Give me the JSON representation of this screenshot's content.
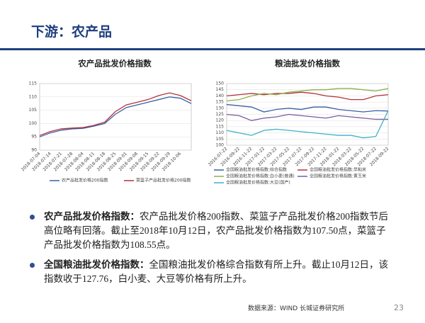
{
  "header": {
    "title": "下游：农产品"
  },
  "chart_data": [
    {
      "type": "line",
      "title": "农产品批发价格指数",
      "categories": [
        "2018-07-04",
        "2018-07-14",
        "2018-07-21",
        "2018-07-28",
        "2018-08-04",
        "2018-08-11",
        "2018-08-18",
        "2018-08-25",
        "2018-09-01",
        "2018-09-08",
        "2018-09-15",
        "2018-09-22",
        "2018-09-29",
        "2018-10-06",
        null
      ],
      "series": [
        {
          "name": "农产品批发价格200指数",
          "color": "#3a5fa8",
          "values": [
            95,
            96.5,
            97.5,
            98,
            98.2,
            99,
            100,
            103.5,
            106,
            107,
            108,
            109,
            110,
            109.5,
            107.5
          ]
        },
        {
          "name": "菜篮子产品批发价格200指数",
          "color": "#b0333a",
          "values": [
            95.5,
            97,
            98,
            98.3,
            98.5,
            99.3,
            100.5,
            104.5,
            107,
            108,
            109,
            110.5,
            111.5,
            110.5,
            108.55
          ]
        }
      ],
      "ylim": [
        90,
        115
      ],
      "yticks": [
        90,
        95,
        100,
        105,
        110,
        115
      ],
      "grid": true
    },
    {
      "type": "line",
      "title": "粮油批发价格指数",
      "categories": [
        "2016-07-22",
        "2016-09-22",
        "2016-11-22",
        "2017-01-22",
        "2017-03-22",
        "2017-05-22",
        "2017-07-22",
        "2017-09-22",
        "2017-11-22",
        "2018-01-22",
        "2018-03-22",
        "2018-05-22",
        "2018-07-22",
        "2018-09-22"
      ],
      "series": [
        {
          "name": "全国粮油批发价格指数:综合指数",
          "color": "#3a5fa8",
          "values": [
            133,
            132,
            131,
            127,
            129,
            130,
            129,
            131,
            131,
            129,
            128,
            127,
            128,
            127.76
          ]
        },
        {
          "name": "全国粮油批发价格指数:早籼米",
          "color": "#b0333a",
          "values": [
            140,
            141,
            142,
            141,
            142,
            142,
            143,
            142,
            140,
            139,
            137,
            137,
            140,
            141
          ]
        },
        {
          "name": "全国粮油批发价格指数:白小麦(普通)",
          "color": "#8db04a",
          "values": [
            136,
            137,
            140,
            142,
            141,
            143,
            144,
            145,
            145,
            146,
            146,
            145,
            144,
            146
          ]
        },
        {
          "name": "全国粮油批发价格指数:黄玉米",
          "color": "#7a5aa0",
          "values": [
            125,
            124,
            120,
            122,
            123,
            125,
            124,
            123,
            122,
            124,
            123,
            122,
            121,
            121
          ]
        },
        {
          "name": "全国粮油批发价格指数:大豆(国产)",
          "color": "#3fb0c8",
          "values": [
            112,
            110,
            108,
            112,
            113,
            112,
            111,
            110,
            109,
            108,
            108,
            106,
            107,
            128
          ]
        }
      ],
      "ylim": [
        100,
        150
      ],
      "yticks": [
        100,
        105,
        110,
        115,
        120,
        125,
        130,
        135,
        140,
        145,
        150
      ],
      "grid": true
    }
  ],
  "bullets": [
    {
      "lead": "农产品批发价格指数：",
      "text": "农产品批发价格200指数、菜篮子产品批发价格200指数节后高位略有回落。截止至2018年10月12日，农产品批发价格指数为107.50点，菜篮子产品批发价格指数为108.55点。"
    },
    {
      "lead": "全国粮油批发价格指数：",
      "text": "全国粮油批发价格综合指数有所上升。截止10月12日，该指数收于127.76，白小麦、大豆等价格有所上升。"
    }
  ],
  "footer": {
    "source": "数据来源：WIND 长城证券研究所",
    "page": "23"
  }
}
